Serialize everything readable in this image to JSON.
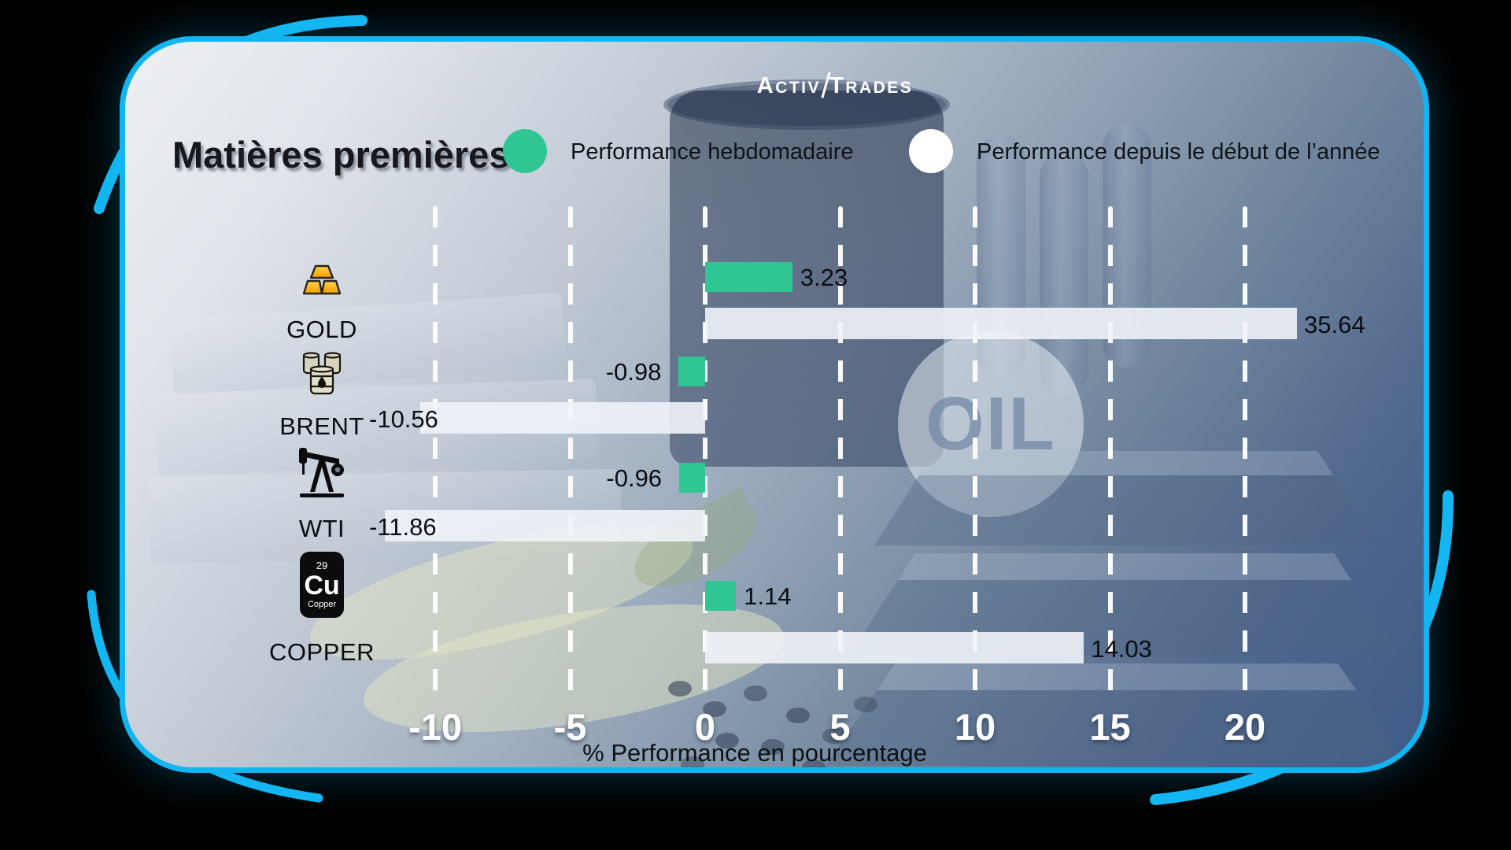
{
  "logo": {
    "part1": "ACTIV",
    "part2": "TRADES"
  },
  "header": {
    "title": "Matières premières"
  },
  "background": {
    "oil_text": "OIL"
  },
  "copper_tile": {
    "atomic_number": "29",
    "symbol": "Cu",
    "element_name": "Copper"
  },
  "chart_data": {
    "type": "bar",
    "orientation": "horizontal",
    "title": "Matières premières",
    "categories": [
      "GOLD",
      "BRENT",
      "WTI",
      "COPPER"
    ],
    "category_icons": [
      "gold-bars-icon",
      "oil-barrels-icon",
      "oil-pump-jack-icon",
      "copper-element-icon"
    ],
    "series": [
      {
        "name": "Performance hebdomadaire",
        "color": "#30c694",
        "values": [
          3.23,
          -0.98,
          -0.96,
          1.14
        ]
      },
      {
        "name": "Performance depuis le début de l’année",
        "color": "#f0f3f8",
        "values": [
          35.64,
          -10.56,
          -11.86,
          14.03
        ]
      }
    ],
    "x_ticks": [
      -10,
      -5,
      0,
      5,
      10,
      15,
      20
    ],
    "xlim": [
      -17,
      22.6
    ],
    "xlabel": "% Performance en pourcentage",
    "grid": "dashed-vertical-white",
    "legend_position": "top",
    "value_label_decimals": 2,
    "colors": {
      "accent_border": "#12b5f2",
      "weekly": "#30c694",
      "ytd": "#f0f3f8"
    }
  }
}
